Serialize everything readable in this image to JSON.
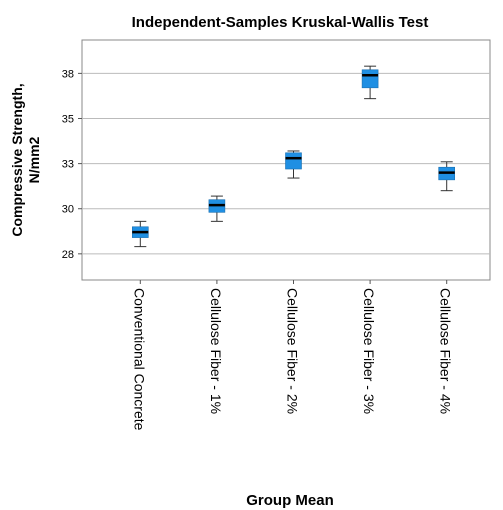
{
  "chart_data": {
    "type": "box",
    "title": "Independent-Samples Kruskal-Wallis Test",
    "xlabel": "Group Mean",
    "ylabel": [
      "Compressive Strength,",
      "N/mm2"
    ],
    "categories": [
      "Conventional Concrete",
      "Cellulose Fiber - 1%",
      "Cellulose Fiber - 2%",
      "Cellulose Fiber - 3%",
      "Cellulose Fiber - 4%"
    ],
    "boxes": [
      {
        "min": 27.9,
        "q1": 28.4,
        "median": 28.7,
        "q3": 29.0,
        "max": 29.3
      },
      {
        "min": 29.3,
        "q1": 29.8,
        "median": 30.2,
        "q3": 30.5,
        "max": 30.7
      },
      {
        "min": 31.7,
        "q1": 32.2,
        "median": 32.8,
        "q3": 33.1,
        "max": 33.2
      },
      {
        "min": 36.1,
        "q1": 36.7,
        "median": 37.4,
        "q3": 37.7,
        "max": 37.9
      },
      {
        "min": 31.0,
        "q1": 31.6,
        "median": 32.0,
        "q3": 32.3,
        "max": 32.6
      }
    ],
    "color": "#1f8fe3",
    "ylim": [
      26.05,
      39.35
    ],
    "yticks": [
      {
        "value": 27.5,
        "label": "28"
      },
      30,
      {
        "value": 32.5,
        "label": "33"
      },
      35,
      {
        "value": 37.5,
        "label": "38"
      }
    ],
    "grid": true
  }
}
